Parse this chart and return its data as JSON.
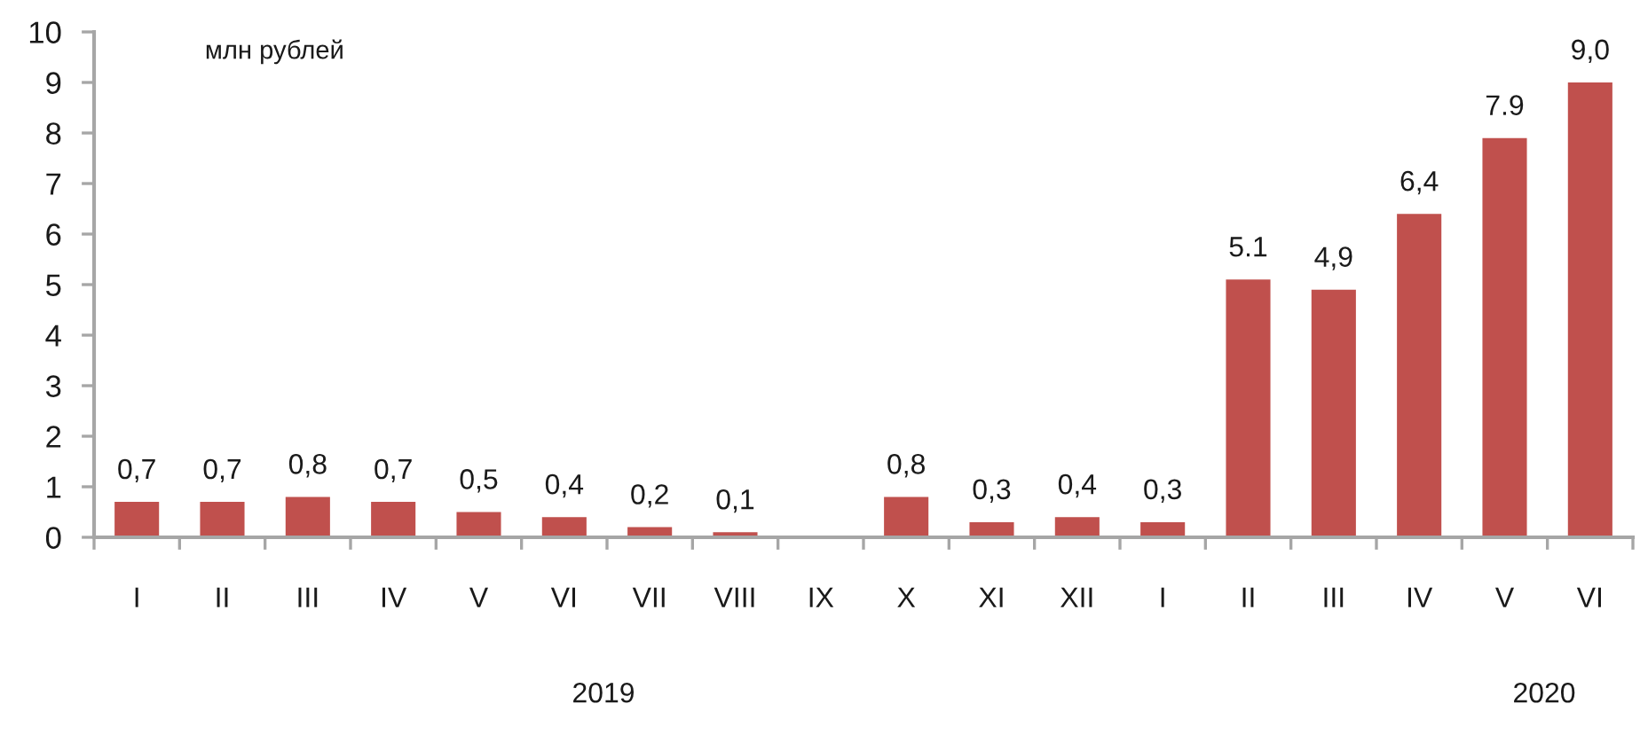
{
  "chart_data": {
    "type": "bar",
    "ylabel": "млн рублей",
    "categories": [
      "I",
      "II",
      "III",
      "IV",
      "V",
      "VI",
      "VII",
      "VIII",
      "IX",
      "X",
      "XI",
      "XII",
      "I",
      "II",
      "III",
      "IV",
      "V",
      "VI"
    ],
    "values": [
      0.7,
      0.7,
      0.8,
      0.7,
      0.5,
      0.4,
      0.2,
      0.1,
      null,
      0.8,
      0.3,
      0.4,
      0.3,
      5.1,
      4.9,
      6.4,
      7.9,
      9.0
    ],
    "value_labels": [
      "0,7",
      "0,7",
      "0,8",
      "0,7",
      "0,5",
      "0,4",
      "0,2",
      "0,1",
      null,
      "0,8",
      "0,3",
      "0,4",
      "0,3",
      "5.1",
      "4,9",
      "6,4",
      "7.9",
      "9,0"
    ],
    "color": "#c0504d",
    "ylim": [
      0,
      10
    ],
    "yticks": [
      0,
      1,
      2,
      3,
      4,
      5,
      6,
      7,
      8,
      9,
      10
    ],
    "annotations": [
      "2019",
      "2020"
    ]
  }
}
